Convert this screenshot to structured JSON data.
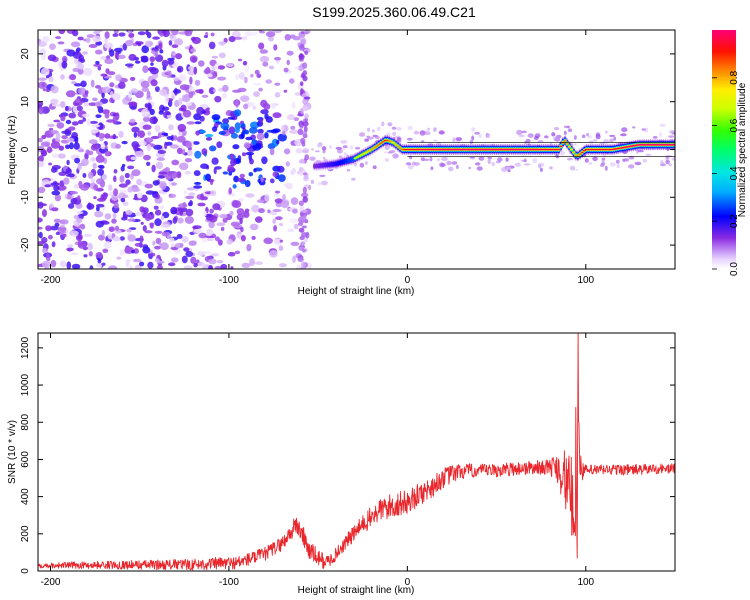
{
  "title": "S199.2025.360.06.49.C21",
  "chart_data": [
    {
      "type": "heatmap",
      "name": "spectrogram",
      "xlabel": "Height of straight line (km)",
      "ylabel": "Frequency (Hz)",
      "xlim": [
        -207,
        150
      ],
      "ylim": [
        -25,
        25
      ],
      "xticks": [
        -200,
        -100,
        0,
        100
      ],
      "yticks": [
        -20,
        -10,
        0,
        10,
        20
      ],
      "grid": false,
      "colorbar": {
        "label": "Normalized spectral amplitude",
        "range": [
          0,
          1
        ],
        "ticks": [
          0.0,
          0.2,
          0.4,
          0.6,
          0.8
        ],
        "tick_labels": [
          "0.0",
          "0.2",
          "0.4",
          "0.6",
          "0.8"
        ],
        "colormap": "rainbow"
      },
      "signal_track": {
        "description": "dominant carrier frequency vs height",
        "x": [
          -52,
          -40,
          -30,
          -20,
          -12,
          -8,
          -3,
          0,
          20,
          60,
          85,
          88,
          92,
          95,
          100,
          115,
          130,
          150
        ],
        "y": [
          -3.5,
          -3.0,
          -2.0,
          0.0,
          2.0,
          1.5,
          0.0,
          0.0,
          0.0,
          0.0,
          0.0,
          2.0,
          0.0,
          -1.5,
          0.0,
          0.0,
          1.0,
          1.0
        ],
        "amplitude": [
          0.3,
          0.45,
          0.6,
          0.75,
          0.85,
          0.7,
          0.8,
          0.9,
          0.95,
          0.95,
          0.9,
          0.8,
          0.7,
          0.75,
          0.9,
          0.9,
          0.95,
          0.95
        ]
      },
      "noise_region": {
        "x_range": [
          -207,
          -55
        ],
        "y_range": [
          -25,
          25
        ],
        "typical_amplitude": 0.12
      }
    },
    {
      "type": "line",
      "name": "snr",
      "xlabel": "Height of straight line (km)",
      "ylabel": "SNR (10 * v/v)",
      "xlim": [
        -207,
        150
      ],
      "ylim": [
        0,
        1280
      ],
      "xticks": [
        -200,
        -100,
        0,
        100
      ],
      "yticks": [
        0,
        200,
        400,
        600,
        800,
        1000,
        1200
      ],
      "grid": false,
      "color": "#e8262b",
      "envelope": {
        "x": [
          -207,
          -120,
          -95,
          -80,
          -70,
          -62,
          -58,
          -55,
          -50,
          -45,
          -40,
          -35,
          -30,
          -25,
          -20,
          -15,
          -10,
          -5,
          0,
          5,
          10,
          15,
          20,
          25,
          30,
          40,
          50,
          60,
          70,
          80,
          85,
          88,
          90,
          92,
          93,
          95,
          96,
          97,
          100,
          110,
          120,
          130,
          140,
          150
        ],
        "y": [
          30,
          35,
          45,
          90,
          150,
          250,
          180,
          110,
          70,
          45,
          90,
          150,
          200,
          250,
          290,
          330,
          345,
          360,
          370,
          400,
          430,
          460,
          500,
          520,
          535,
          540,
          540,
          550,
          555,
          560,
          560,
          500,
          450,
          400,
          300,
          500,
          800,
          550,
          540,
          545,
          545,
          545,
          550,
          550
        ]
      },
      "noise_amplitude": {
        "x": [
          -207,
          -70,
          -60,
          -40,
          -10,
          20,
          40,
          80,
          86,
          90,
          95,
          97,
          100,
          150
        ],
        "y": [
          14,
          40,
          60,
          35,
          70,
          55,
          35,
          40,
          130,
          180,
          260,
          80,
          30,
          28
        ]
      },
      "spikes": [
        {
          "x": 95.8,
          "y": 1280
        },
        {
          "x": 94.5,
          "y": 880
        },
        {
          "x": 95.2,
          "y": 70
        }
      ]
    }
  ]
}
